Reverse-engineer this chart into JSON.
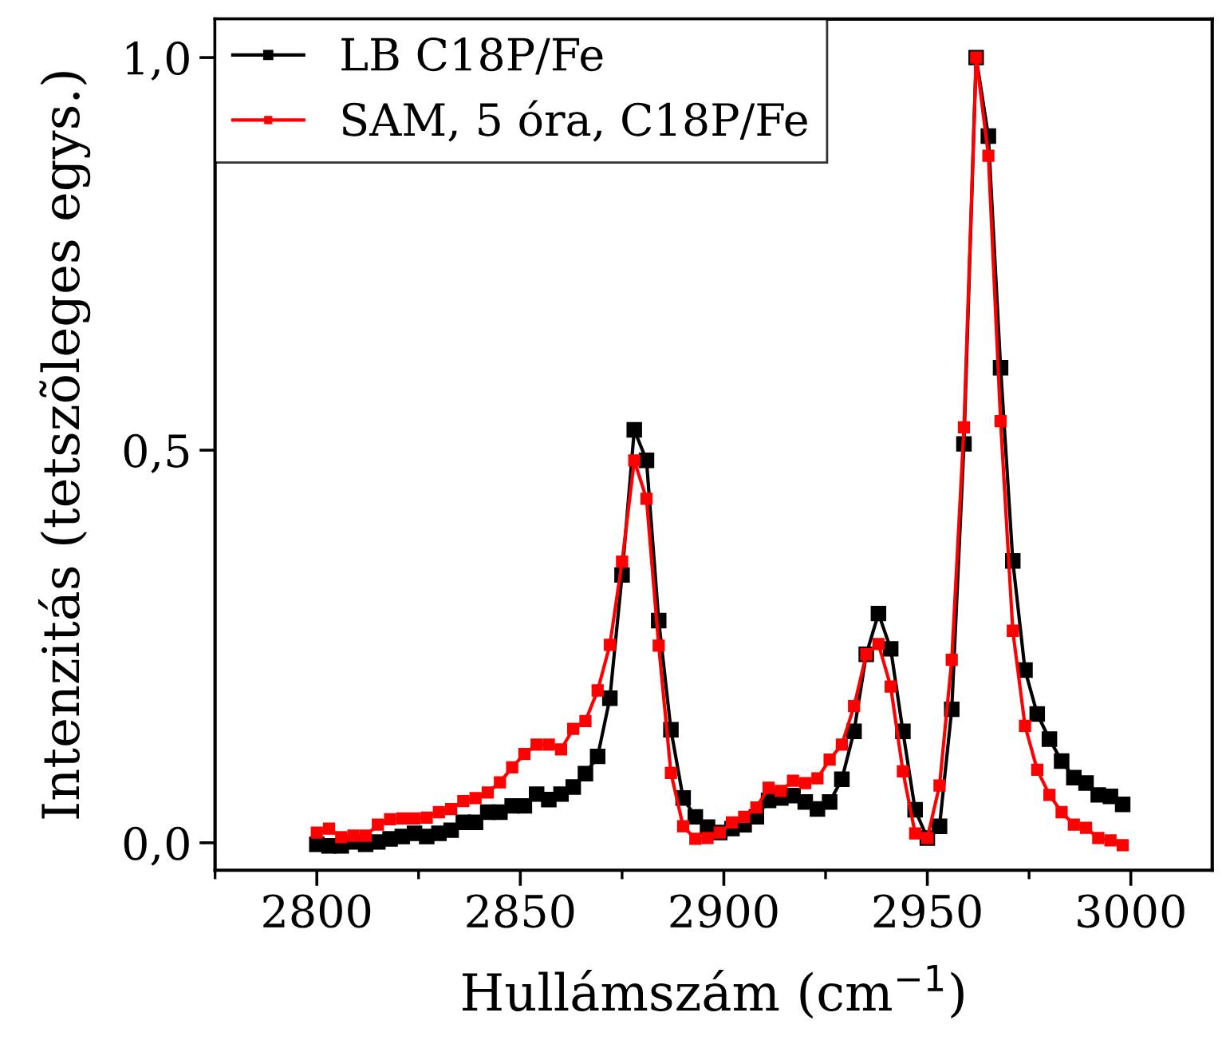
{
  "chart_data": {
    "type": "line",
    "xlabel": "Hullámszám (cm$^{−1}$)",
    "ylabel": "Intenzitás (tetszõleges egys.)",
    "x": [
      2800,
      2803,
      2806,
      2809,
      2812,
      2815,
      2818,
      2821,
      2824,
      2827,
      2830,
      2833,
      2836,
      2839,
      2842,
      2845,
      2848,
      2851,
      2854,
      2857,
      2860,
      2863,
      2866,
      2869,
      2872,
      2875,
      2878,
      2881,
      2884,
      2887,
      2890,
      2893,
      2896,
      2899,
      2902,
      2905,
      2908,
      2911,
      2914,
      2917,
      2920,
      2923,
      2926,
      2929,
      2932,
      2935,
      2938,
      2941,
      2944,
      2947,
      2950,
      2953,
      2956,
      2959,
      2962,
      2965,
      2968,
      2971,
      2974,
      2977,
      2980,
      2983,
      2986,
      2989,
      2992,
      2995,
      2998
    ],
    "series": [
      {
        "name": "LB C18P/Fe",
        "color": "#000000",
        "values": [
          -0.002,
          -0.004,
          -0.004,
          0.001,
          -0.002,
          0.001,
          0.005,
          0.008,
          0.012,
          0.008,
          0.012,
          0.016,
          0.026,
          0.026,
          0.039,
          0.039,
          0.047,
          0.047,
          0.062,
          0.055,
          0.062,
          0.071,
          0.088,
          0.11,
          0.184,
          0.341,
          0.526,
          0.487,
          0.283,
          0.144,
          0.057,
          0.033,
          0.02,
          0.013,
          0.018,
          0.023,
          0.033,
          0.054,
          0.057,
          0.06,
          0.052,
          0.043,
          0.052,
          0.081,
          0.142,
          0.24,
          0.292,
          0.247,
          0.142,
          0.042,
          0.006,
          0.021,
          0.17,
          0.508,
          1.0,
          0.9,
          0.605,
          0.359,
          0.22,
          0.164,
          0.132,
          0.104,
          0.083,
          0.076,
          0.061,
          0.059,
          0.049
        ]
      },
      {
        "name": "SAM, 5 óra, C18P/Fe",
        "color": "#ff0000",
        "values": [
          0.013,
          0.018,
          0.007,
          0.009,
          0.009,
          0.023,
          0.03,
          0.031,
          0.031,
          0.032,
          0.039,
          0.043,
          0.053,
          0.057,
          0.064,
          0.077,
          0.096,
          0.113,
          0.125,
          0.125,
          0.119,
          0.145,
          0.155,
          0.194,
          0.252,
          0.358,
          0.487,
          0.438,
          0.251,
          0.089,
          0.021,
          0.005,
          0.006,
          0.013,
          0.026,
          0.033,
          0.045,
          0.07,
          0.066,
          0.079,
          0.076,
          0.082,
          0.106,
          0.125,
          0.174,
          0.24,
          0.253,
          0.199,
          0.091,
          0.012,
          0.006,
          0.073,
          0.233,
          0.529,
          1.0,
          0.875,
          0.537,
          0.27,
          0.149,
          0.093,
          0.061,
          0.039,
          0.023,
          0.019,
          0.006,
          0.003,
          -0.003
        ]
      }
    ],
    "xlim": [
      2775,
      3020
    ],
    "ylim": [
      -0.035,
      1.049
    ],
    "xticks": [
      2800,
      2850,
      2900,
      2950,
      3000
    ],
    "yticks": [
      {
        "value": 0,
        "label": "0,0"
      },
      {
        "value": 0.5,
        "label": "0,5"
      },
      {
        "value": 1.0,
        "label": "1,0"
      }
    ],
    "marker": "square",
    "line_style": "solid",
    "grid": false,
    "legend": "top left"
  }
}
